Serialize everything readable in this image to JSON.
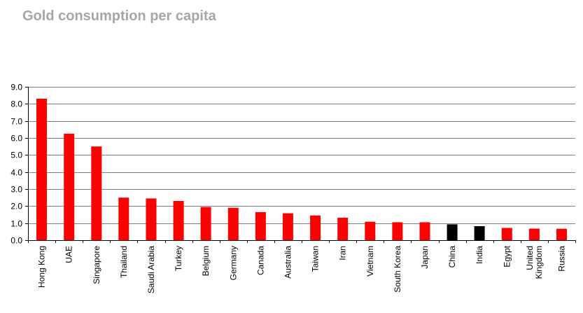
{
  "chart_data": {
    "type": "bar",
    "title": "Gold consumption per capita",
    "xlabel": "",
    "ylabel": "",
    "ylim": [
      0,
      9
    ],
    "ytick_step": 1,
    "ytick_labels": [
      "0.0",
      "1.0",
      "2.0",
      "3.0",
      "4.0",
      "5.0",
      "6.0",
      "7.0",
      "8.0",
      "9.0"
    ],
    "grid": true,
    "legend": "none",
    "categories": [
      "Hong Kong",
      "UAE",
      "Singapore",
      "Thailand",
      "Saudi Arabia",
      "Turkey",
      "Belgium",
      "Germany",
      "Canada",
      "Australia",
      "Taiwan",
      "Iran",
      "Vietnam",
      "South Korea",
      "Japan",
      "China",
      "India",
      "Egypt",
      "United Kingdom",
      "Russia"
    ],
    "category_label_lines": [
      [
        "Hong Kong"
      ],
      [
        "UAE"
      ],
      [
        "Singapore"
      ],
      [
        "Thailand"
      ],
      [
        "Saudi Arabia"
      ],
      [
        "Turkey"
      ],
      [
        "Belgium"
      ],
      [
        "Germany"
      ],
      [
        "Canada"
      ],
      [
        "Australia"
      ],
      [
        "Taiwan"
      ],
      [
        "Iran"
      ],
      [
        "Vietnam"
      ],
      [
        "South Korea"
      ],
      [
        "Japan"
      ],
      [
        "China"
      ],
      [
        "India"
      ],
      [
        "Egypt"
      ],
      [
        "United",
        "Kingdom"
      ],
      [
        "Russia"
      ]
    ],
    "values": [
      8.3,
      6.25,
      5.5,
      2.5,
      2.45,
      2.3,
      1.95,
      1.9,
      1.65,
      1.58,
      1.45,
      1.32,
      1.08,
      1.05,
      1.05,
      0.93,
      0.82,
      0.72,
      0.68,
      0.67
    ],
    "bar_colors": [
      "#ff0000",
      "#ff0000",
      "#ff0000",
      "#ff0000",
      "#ff0000",
      "#ff0000",
      "#ff0000",
      "#ff0000",
      "#ff0000",
      "#ff0000",
      "#ff0000",
      "#ff0000",
      "#ff0000",
      "#ff0000",
      "#ff0000",
      "#000000",
      "#000000",
      "#ff0000",
      "#ff0000",
      "#ff0000"
    ],
    "colors": {
      "default_bar": "#ff0000",
      "highlight_bar": "#000000",
      "gridline": "#808080",
      "axis": "#000000",
      "title": "#a6a6a6"
    }
  }
}
